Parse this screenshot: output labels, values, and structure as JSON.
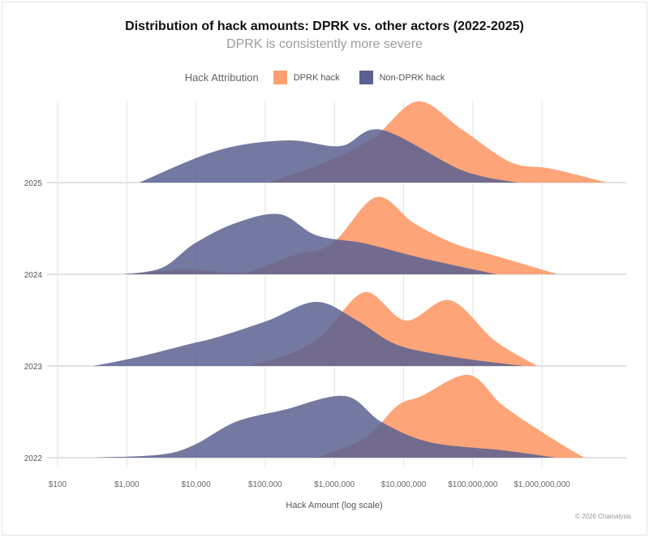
{
  "chart_data": {
    "type": "ridgeline",
    "title": "Distribution of hack amounts: DPRK vs. other actors (2022-2025)",
    "subtitle": "DPRK is consistently more severe",
    "xlabel": "Hack Amount (log scale)",
    "x_scale": "log10",
    "xlim": [
      100,
      10000000000
    ],
    "x_ticks": [
      "$100",
      "$1,000",
      "$10,000",
      "$100,000",
      "$1,000,000",
      "$10,000,000",
      "$100,000,000",
      "$1,000,000,000"
    ],
    "grid": "vertical",
    "legend": {
      "title": "Hack Attribution",
      "placement": "top",
      "entries": [
        "DPRK hack",
        "Non-DPRK hack"
      ]
    },
    "colors": {
      "DPRK hack": "#fd9f71",
      "Non-DPRK hack": "#5b6190"
    },
    "categories": [
      "2025",
      "2024",
      "2023",
      "2022"
    ],
    "density_note_units": "x as log10(USD), y as relative density",
    "series": [
      {
        "name": "DPRK hack",
        "ridges": {
          "2025": [
            [
              5.04,
              0
            ],
            [
              5.86,
              0.25
            ],
            [
              6.56,
              0.55
            ],
            [
              7.2,
              1.0
            ],
            [
              7.85,
              0.65
            ],
            [
              8.55,
              0.25
            ],
            [
              9.14,
              0.17
            ],
            [
              9.94,
              0
            ]
          ],
          "2024": [
            [
              3.04,
              0
            ],
            [
              3.86,
              0.06
            ],
            [
              4.68,
              0.02
            ],
            [
              5.39,
              0.23
            ],
            [
              5.97,
              0.38
            ],
            [
              6.6,
              0.95
            ],
            [
              7.15,
              0.63
            ],
            [
              7.73,
              0.38
            ],
            [
              8.44,
              0.2
            ],
            [
              9.23,
              0
            ]
          ],
          "2023": [
            [
              4.74,
              0
            ],
            [
              5.39,
              0.16
            ],
            [
              5.86,
              0.41
            ],
            [
              6.44,
              0.91
            ],
            [
              7.03,
              0.56
            ],
            [
              7.67,
              0.81
            ],
            [
              8.32,
              0.31
            ],
            [
              8.93,
              0
            ]
          ],
          "2022": [
            [
              5.74,
              0
            ],
            [
              6.44,
              0.24
            ],
            [
              6.91,
              0.64
            ],
            [
              7.26,
              0.76
            ],
            [
              7.94,
              1.02
            ],
            [
              8.44,
              0.64
            ],
            [
              9.14,
              0.24
            ],
            [
              9.61,
              0
            ]
          ]
        }
      },
      {
        "name": "Non-DPRK hack",
        "ridges": {
          "2025": [
            [
              3.18,
              0
            ],
            [
              4.33,
              0.4
            ],
            [
              5.33,
              0.52
            ],
            [
              6.09,
              0.45
            ],
            [
              6.68,
              0.65
            ],
            [
              7.85,
              0.15
            ],
            [
              8.65,
              0
            ]
          ],
          "2024": [
            [
              2.95,
              0
            ],
            [
              3.51,
              0.08
            ],
            [
              3.98,
              0.38
            ],
            [
              4.57,
              0.63
            ],
            [
              5.21,
              0.74
            ],
            [
              5.74,
              0.48
            ],
            [
              6.44,
              0.38
            ],
            [
              7.26,
              0.2
            ],
            [
              8.34,
              0
            ]
          ],
          "2023": [
            [
              2.52,
              0
            ],
            [
              3.16,
              0.11
            ],
            [
              3.86,
              0.26
            ],
            [
              4.33,
              0.36
            ],
            [
              5.04,
              0.56
            ],
            [
              5.74,
              0.79
            ],
            [
              6.33,
              0.56
            ],
            [
              6.91,
              0.26
            ],
            [
              7.73,
              0.11
            ],
            [
              8.73,
              0
            ]
          ],
          "2022": [
            [
              2.55,
              0
            ],
            [
              3.51,
              0.04
            ],
            [
              3.98,
              0.16
            ],
            [
              4.57,
              0.44
            ],
            [
              5.27,
              0.59
            ],
            [
              6.15,
              0.76
            ],
            [
              6.68,
              0.44
            ],
            [
              7.38,
              0.19
            ],
            [
              8.44,
              0.09
            ],
            [
              9.2,
              0
            ]
          ]
        }
      }
    ]
  },
  "footer": {
    "copyright": "© 2026 Chainalysis"
  }
}
